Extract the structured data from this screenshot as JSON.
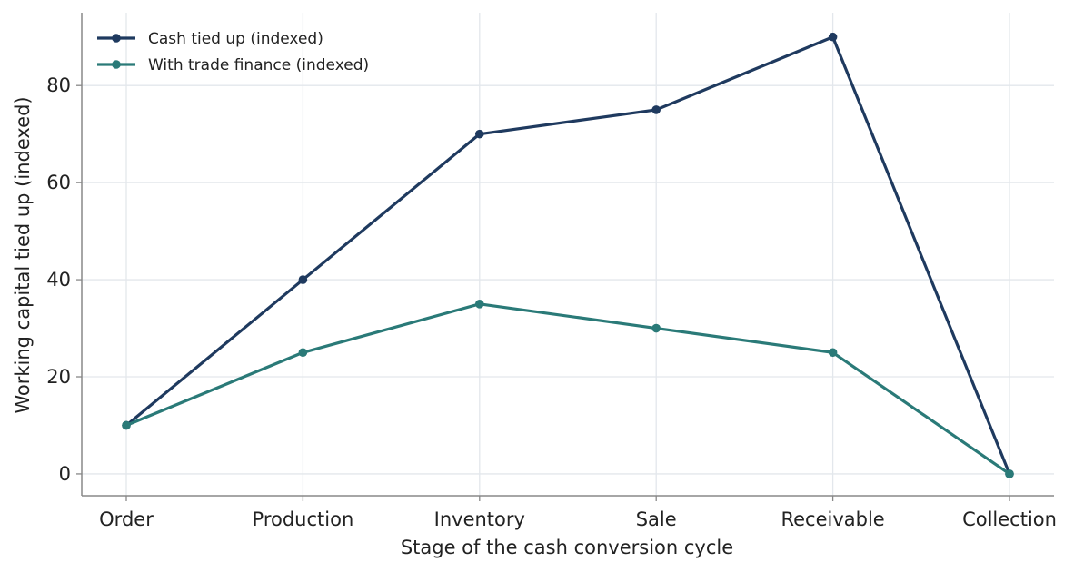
{
  "chart_data": {
    "type": "line",
    "xlabel": "Stage of the cash conversion cycle",
    "ylabel": "Working capital tied up (indexed)",
    "categories": [
      "Order",
      "Production",
      "Inventory",
      "Sale",
      "Receivable",
      "Collection"
    ],
    "series": [
      {
        "name": "Cash tied up (indexed)",
        "color": "#1f3a5f",
        "values": [
          10,
          40,
          70,
          75,
          90,
          0
        ]
      },
      {
        "name": "With trade finance (indexed)",
        "color": "#2a7a78",
        "values": [
          10,
          25,
          35,
          30,
          25,
          0
        ]
      }
    ],
    "yticks": [
      "0",
      "20",
      "40",
      "60",
      "80"
    ],
    "ylim": [
      -4.5,
      95
    ],
    "grid": true,
    "legend": "top-left"
  }
}
